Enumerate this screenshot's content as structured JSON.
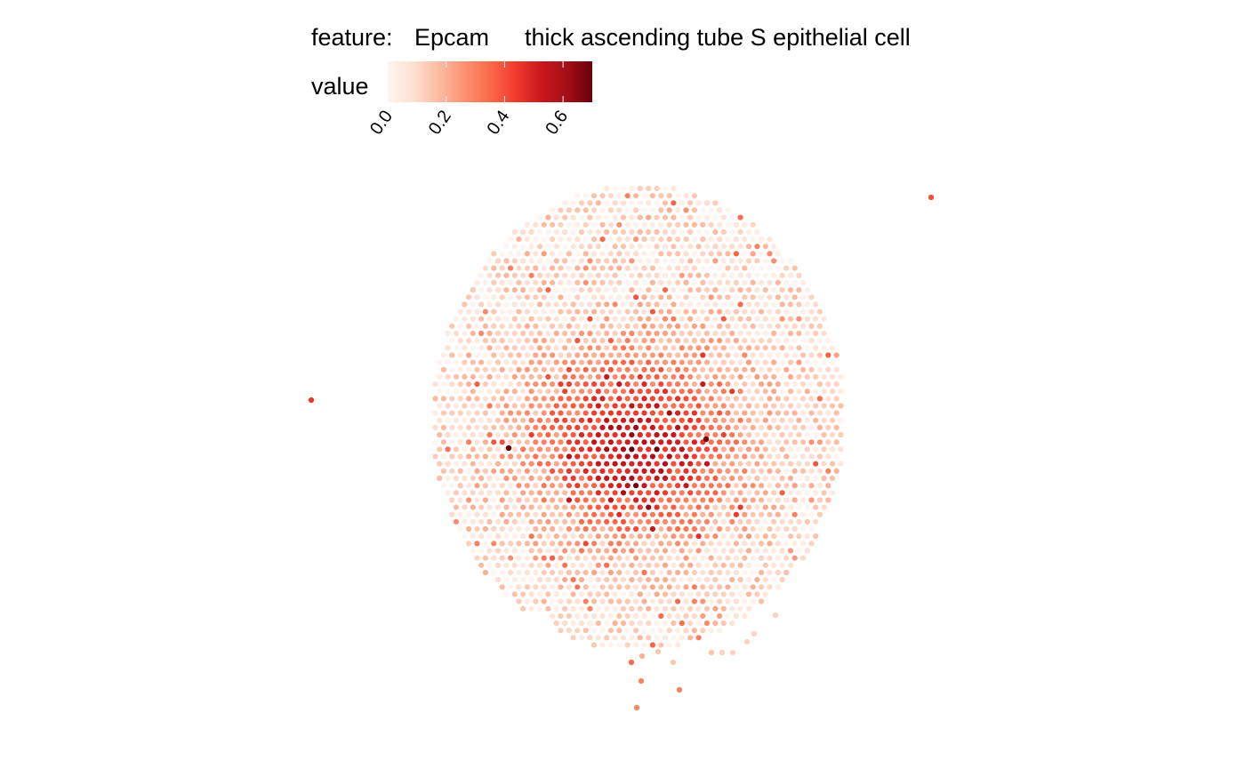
{
  "legend": {
    "feature_label": "feature:",
    "feature_value": "Epcam",
    "cell_type": "thick ascending tube S epithelial cell",
    "value_label": "value"
  },
  "chart_data": {
    "type": "scatter",
    "title": "",
    "xlabel": "",
    "ylabel": "",
    "color_scale": {
      "name": "value",
      "min": 0.0,
      "max": 0.7,
      "ticks": [
        0.0,
        0.2,
        0.4,
        0.6
      ],
      "tick_labels": [
        "0.0",
        "0.2",
        "0.4",
        "0.6"
      ],
      "colors": [
        "#fff5f0",
        "#fee0d2",
        "#fcbba1",
        "#fc9272",
        "#fb6a4a",
        "#ef3b2c",
        "#cb181d",
        "#a50f15",
        "#67000d"
      ]
    },
    "spatial_grid": {
      "description": "hexagonal spot grid; tissue section roughly elliptical",
      "center_row": 24,
      "center_col": 27,
      "hotspot_value": 0.55,
      "background_value": 0.08
    },
    "highlight_points": [
      {
        "x": -26,
        "y": 0,
        "value": 0.45
      },
      {
        "x": 23,
        "y": -24,
        "value": 0.4
      },
      {
        "x": -13,
        "y": 5,
        "value": 0.7
      },
      {
        "x": 8,
        "y": 4,
        "value": 0.68
      }
    ]
  }
}
